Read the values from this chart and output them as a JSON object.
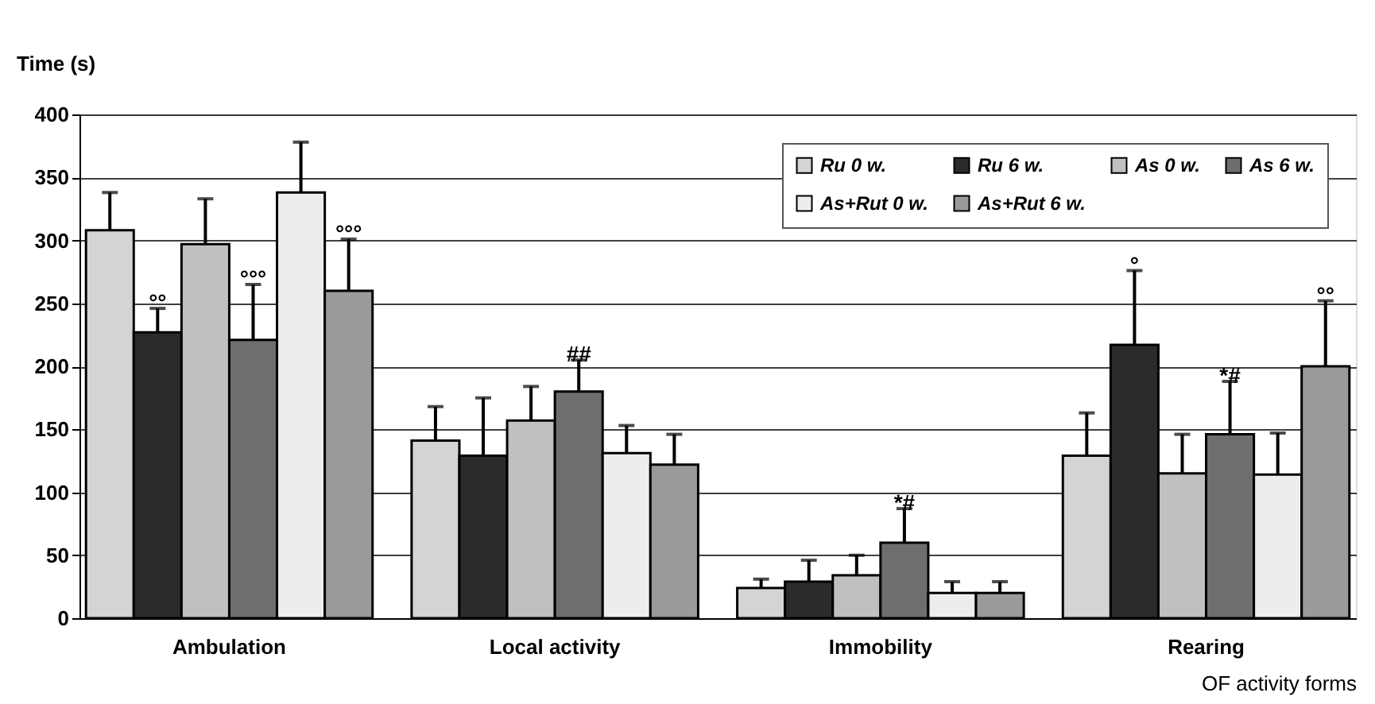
{
  "chart_data": {
    "type": "bar",
    "ylabel": "Time (s)",
    "xlabel": "OF activity forms",
    "categories": [
      "Ambulation",
      "Local activity",
      "Immobility",
      "Rearing"
    ],
    "series": [
      {
        "name": "Ru 0 w.",
        "color": "#d4d4d4",
        "values": [
          308,
          141,
          24,
          129
        ],
        "errors": [
          [
            308,
            338
          ],
          [
            141,
            168
          ],
          [
            24,
            31
          ],
          [
            129,
            163
          ]
        ]
      },
      {
        "name": "Ru 6 w.",
        "color": "#2b2b2b",
        "values": [
          227,
          129,
          29,
          217
        ],
        "errors": [
          [
            227,
            246
          ],
          [
            129,
            175
          ],
          [
            29,
            46
          ],
          [
            217,
            276
          ]
        ],
        "value_labels": [
          "°°",
          null,
          null,
          "°"
        ]
      },
      {
        "name": "As 0 w.",
        "color": "#c0c0c0",
        "values": [
          297,
          157,
          34,
          115
        ],
        "errors": [
          [
            297,
            333
          ],
          [
            157,
            184
          ],
          [
            34,
            50
          ],
          [
            115,
            146
          ]
        ]
      },
      {
        "name": "As 6 w.",
        "color": "#6e6e6e",
        "values": [
          221,
          180,
          60,
          146
        ],
        "errors": [
          [
            221,
            265
          ],
          [
            180,
            205
          ],
          [
            60,
            87
          ],
          [
            146,
            188
          ]
        ],
        "value_labels": [
          "°°°",
          "##",
          "*#",
          "*#"
        ]
      },
      {
        "name": "As+Rut 0 w.",
        "color": "#ededed",
        "values": [
          338,
          131,
          20,
          114
        ],
        "errors": [
          [
            338,
            378
          ],
          [
            131,
            153
          ],
          [
            20,
            29
          ],
          [
            114,
            147
          ]
        ]
      },
      {
        "name": "As+Rut 6 w.",
        "color": "#9a9a9a",
        "values": [
          260,
          122,
          20,
          200
        ],
        "errors": [
          [
            260,
            301
          ],
          [
            122,
            146
          ],
          [
            20,
            29
          ],
          [
            200,
            252
          ]
        ],
        "value_labels": [
          "°°°",
          null,
          null,
          "°°"
        ]
      }
    ],
    "ylim": [
      0,
      400
    ],
    "yticks": [
      0,
      50,
      100,
      150,
      200,
      250,
      300,
      350,
      400
    ],
    "grid": "y",
    "legend": "top right"
  }
}
